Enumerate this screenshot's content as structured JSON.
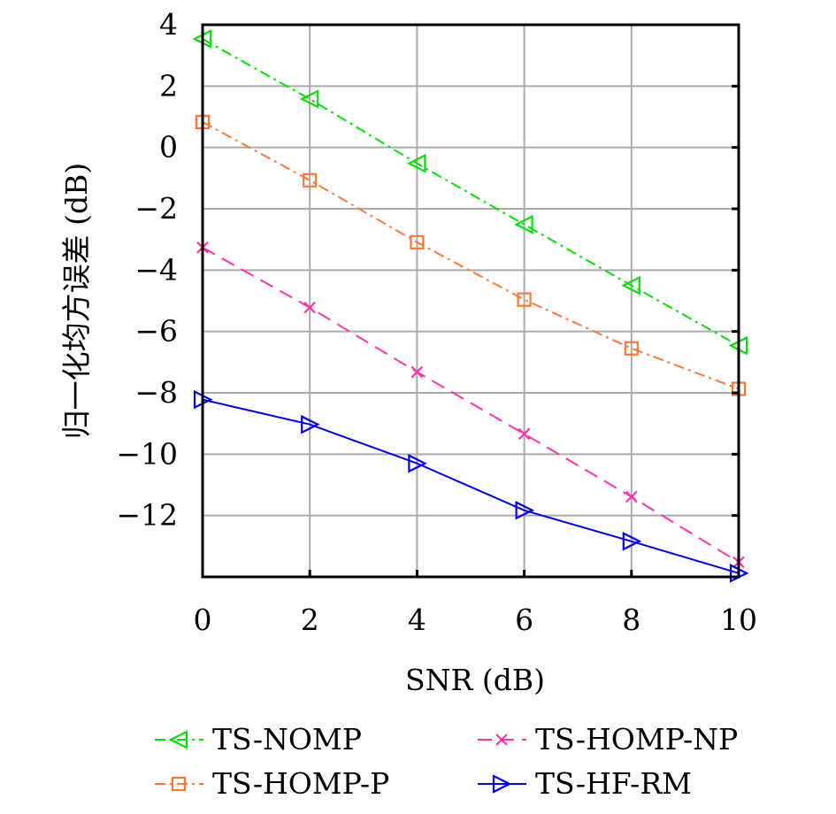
{
  "chart_data": {
    "type": "line",
    "xlabel": "SNR (dB)",
    "ylabel": "归一化均方误差 (dB)",
    "xlim": [
      0,
      10
    ],
    "ylim": [
      -14,
      4
    ],
    "xticks": [
      0,
      2,
      4,
      6,
      8,
      10
    ],
    "yticks": [
      4,
      2,
      0,
      -2,
      -4,
      -6,
      -8,
      -10,
      -12
    ],
    "ytick_labels": [
      "4",
      "2",
      "0",
      "−2",
      "−4",
      "−6",
      "−8",
      "−10",
      "−12"
    ],
    "grid": true,
    "legend_position": "bottom",
    "x": [
      0,
      2,
      4,
      6,
      8,
      10
    ],
    "series": [
      {
        "name": "TS-NOMP",
        "values": [
          3.54,
          1.58,
          -0.52,
          -2.51,
          -4.5,
          -6.46
        ],
        "color": "#00e000",
        "marker": "triangle-left",
        "dash": "dash-dot"
      },
      {
        "name": "TS-HOMP-NP",
        "values": [
          -3.26,
          -5.22,
          -7.32,
          -9.34,
          -11.39,
          -13.52
        ],
        "color": "#ff33aa",
        "marker": "x",
        "dash": "dashed"
      },
      {
        "name": "TS-HOMP-P",
        "values": [
          0.83,
          -1.07,
          -3.09,
          -4.96,
          -6.55,
          -7.87
        ],
        "color": "#ff7733",
        "marker": "square",
        "dash": "dash-dot"
      },
      {
        "name": "TS-HF-RM",
        "values": [
          -8.22,
          -9.03,
          -10.3,
          -11.83,
          -12.84,
          -13.88
        ],
        "color": "#0000ee",
        "marker": "triangle-right",
        "dash": "solid"
      }
    ]
  }
}
